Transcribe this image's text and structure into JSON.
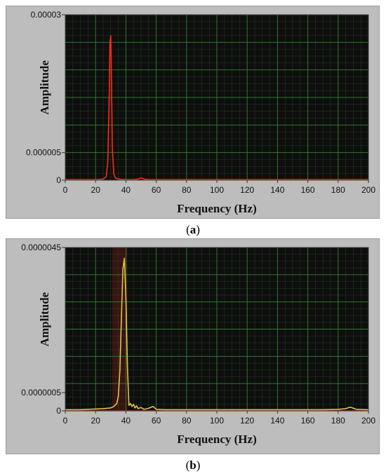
{
  "captions": [
    "a",
    "b"
  ],
  "chart_data": [
    {
      "type": "line",
      "panel": "a",
      "title": "",
      "xlabel": "Frequency (Hz)",
      "ylabel": "Amplitude",
      "xlim": [
        0,
        200
      ],
      "ylim": [
        0,
        3e-05
      ],
      "x_ticks": [
        "0",
        "20",
        "40",
        "60",
        "80",
        "100",
        "120",
        "140",
        "160",
        "180",
        "200"
      ],
      "y_ticks": [
        {
          "value": 0,
          "label": "0"
        },
        {
          "value": 5e-06,
          "label": "0.000005"
        },
        {
          "value": 3e-05,
          "label": "0.00003"
        }
      ],
      "grid": true,
      "colors": {
        "plot_bg": "#0e0e0e",
        "grid": "#2f7d2f",
        "line": "#ff2a1a",
        "panel_bg": "#bdbdbd"
      },
      "series": [
        {
          "x": [
            0,
            10,
            20,
            25,
            27,
            28,
            29,
            29.5,
            30,
            30.5,
            31,
            32,
            33,
            35,
            40,
            45,
            48,
            50,
            52,
            55,
            60,
            80,
            100,
            120,
            140,
            160,
            180,
            200
          ],
          "y": [
            1e-07,
            1e-07,
            1e-07,
            2e-07,
            6e-07,
            3e-06,
            1.5e-05,
            2.5e-05,
            2.62e-05,
            1.8e-05,
            6e-06,
            1.2e-06,
            4e-07,
            2e-07,
            1e-07,
            1e-07,
            2e-07,
            4e-07,
            2e-07,
            1e-07,
            1e-07,
            1e-07,
            1e-07,
            1e-07,
            1e-07,
            1e-07,
            1e-07,
            1e-07
          ]
        }
      ]
    },
    {
      "type": "line",
      "panel": "b",
      "title": "",
      "xlabel": "Frequency (Hz)",
      "ylabel": "Amplitude",
      "xlim": [
        0,
        200
      ],
      "ylim": [
        0,
        4.5e-06
      ],
      "x_ticks": [
        "0",
        "20",
        "40",
        "60",
        "80",
        "100",
        "120",
        "140",
        "160",
        "180",
        "200"
      ],
      "y_ticks": [
        {
          "value": 0,
          "label": "0"
        },
        {
          "value": 5e-07,
          "label": "0.0000005"
        },
        {
          "value": 4.5e-06,
          "label": "0.0000045"
        }
      ],
      "grid": true,
      "colors": {
        "plot_bg": "#0e0e0e",
        "grid": "#2f7d2f",
        "line": "#e0c24a",
        "baseline": "#ff2a1a",
        "band": "#5a1a14",
        "panel_bg": "#bdbdbd"
      },
      "highlight_band": [
        31,
        41
      ],
      "series": [
        {
          "x": [
            0,
            10,
            20,
            25,
            30,
            32,
            34,
            35,
            36,
            37,
            38,
            39,
            40,
            41,
            42,
            43,
            44,
            45,
            46,
            47,
            48,
            50,
            52,
            55,
            58,
            60,
            65,
            70,
            80,
            90,
            100,
            110,
            120,
            130,
            140,
            150,
            160,
            170,
            180,
            185,
            188,
            192,
            200
          ],
          "y": [
            3e-08,
            3e-08,
            5e-08,
            6e-08,
            8e-08,
            1.2e-07,
            2e-07,
            4e-07,
            1.1e-06,
            2.5e-06,
            3.9e-06,
            4.2e-06,
            3.1e-06,
            1.2e-06,
            1.5e-07,
            2e-07,
            1.2e-07,
            1.8e-07,
            8e-08,
            1.4e-07,
            6e-08,
            9e-08,
            4e-08,
            7e-08,
            1.2e-07,
            4e-08,
            3e-08,
            3e-08,
            3e-08,
            3e-08,
            3e-08,
            3e-08,
            3e-08,
            3e-08,
            3e-08,
            3e-08,
            3e-08,
            3e-08,
            4e-08,
            6e-08,
            1e-07,
            4e-08,
            3e-08
          ]
        }
      ]
    }
  ]
}
